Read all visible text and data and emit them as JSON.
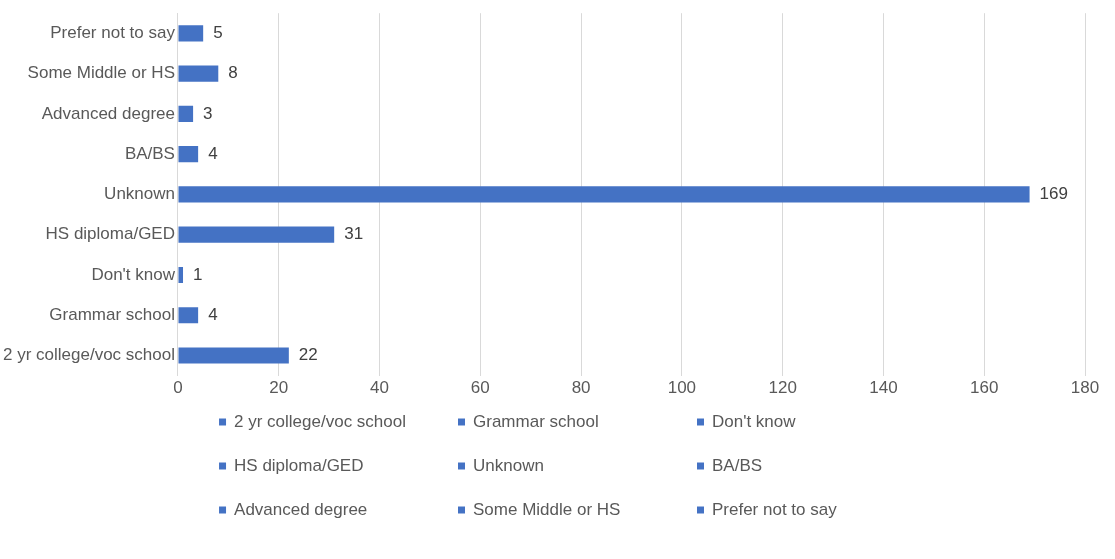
{
  "chart_data": {
    "type": "bar",
    "orientation": "horizontal",
    "categories": [
      "Prefer not to say",
      "Some Middle or HS",
      "Advanced degree",
      "BA/BS",
      "Unknown",
      "HS diploma/GED",
      "Don't know",
      "Grammar school",
      "2 yr college/voc school"
    ],
    "series": [
      {
        "name": "2 yr college/voc school",
        "color": "#4472c4",
        "values": [
          null,
          null,
          null,
          null,
          null,
          null,
          null,
          null,
          22
        ]
      },
      {
        "name": "Grammar school",
        "color": "#4472c4",
        "values": [
          null,
          null,
          null,
          null,
          null,
          null,
          null,
          4,
          null
        ]
      },
      {
        "name": "Don't know",
        "color": "#4472c4",
        "values": [
          null,
          null,
          null,
          null,
          null,
          null,
          1,
          null,
          null
        ]
      },
      {
        "name": "HS diploma/GED",
        "color": "#4472c4",
        "values": [
          null,
          null,
          null,
          null,
          null,
          31,
          null,
          null,
          null
        ]
      },
      {
        "name": "Unknown",
        "color": "#4472c4",
        "values": [
          null,
          null,
          null,
          null,
          169,
          null,
          null,
          null,
          null
        ]
      },
      {
        "name": "BA/BS",
        "color": "#4472c4",
        "values": [
          null,
          null,
          null,
          4,
          null,
          null,
          null,
          null,
          null
        ]
      },
      {
        "name": "Advanced degree",
        "color": "#4472c4",
        "values": [
          null,
          null,
          3,
          null,
          null,
          null,
          null,
          null,
          null
        ]
      },
      {
        "name": "Some Middle or HS",
        "color": "#4472c4",
        "values": [
          null,
          8,
          null,
          null,
          null,
          null,
          null,
          null,
          null
        ]
      },
      {
        "name": "Prefer not to say",
        "color": "#4472c4",
        "values": [
          5,
          null,
          null,
          null,
          null,
          null,
          null,
          null,
          null
        ]
      }
    ],
    "xlim": [
      0,
      180
    ],
    "xticks": [
      0,
      20,
      40,
      60,
      80,
      100,
      120,
      140,
      160,
      180
    ],
    "grid": "x",
    "data_labels": true,
    "legend": "bottom"
  }
}
